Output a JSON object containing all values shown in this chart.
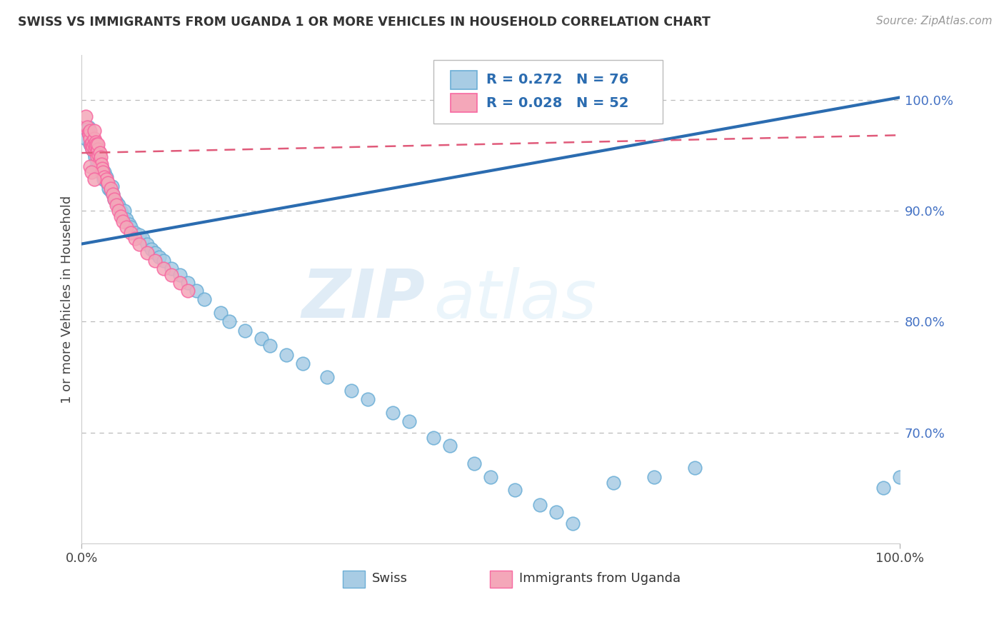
{
  "title": "SWISS VS IMMIGRANTS FROM UGANDA 1 OR MORE VEHICLES IN HOUSEHOLD CORRELATION CHART",
  "source": "Source: ZipAtlas.com",
  "ylabel": "1 or more Vehicles in Household",
  "legend_swiss": "Swiss",
  "legend_uganda": "Immigrants from Uganda",
  "R_swiss": 0.272,
  "N_swiss": 76,
  "R_uganda": 0.028,
  "N_uganda": 52,
  "swiss_color": "#a8cce4",
  "uganda_color": "#f4a7b9",
  "swiss_edge_color": "#6baed6",
  "uganda_edge_color": "#f768a1",
  "swiss_line_color": "#2b6cb0",
  "uganda_line_color": "#e05a7a",
  "background_color": "#ffffff",
  "watermark_zip": "ZIP",
  "watermark_atlas": "atlas",
  "swiss_x": [
    0.005,
    0.008,
    0.01,
    0.01,
    0.012,
    0.013,
    0.015,
    0.015,
    0.016,
    0.017,
    0.018,
    0.018,
    0.019,
    0.02,
    0.02,
    0.021,
    0.022,
    0.023,
    0.024,
    0.025,
    0.026,
    0.027,
    0.028,
    0.03,
    0.031,
    0.033,
    0.035,
    0.037,
    0.038,
    0.04,
    0.042,
    0.045,
    0.048,
    0.05,
    0.052,
    0.055,
    0.058,
    0.06,
    0.065,
    0.07,
    0.075,
    0.08,
    0.085,
    0.09,
    0.095,
    0.1,
    0.11,
    0.12,
    0.13,
    0.14,
    0.15,
    0.17,
    0.18,
    0.2,
    0.22,
    0.23,
    0.25,
    0.27,
    0.3,
    0.33,
    0.35,
    0.38,
    0.4,
    0.43,
    0.45,
    0.48,
    0.5,
    0.53,
    0.56,
    0.58,
    0.6,
    0.65,
    0.7,
    0.75,
    0.98,
    1.0
  ],
  "swiss_y": [
    0.965,
    0.975,
    0.96,
    0.968,
    0.958,
    0.955,
    0.952,
    0.96,
    0.948,
    0.955,
    0.958,
    0.94,
    0.945,
    0.948,
    0.955,
    0.94,
    0.938,
    0.942,
    0.935,
    0.938,
    0.932,
    0.928,
    0.935,
    0.93,
    0.925,
    0.92,
    0.918,
    0.922,
    0.915,
    0.91,
    0.908,
    0.905,
    0.9,
    0.895,
    0.9,
    0.892,
    0.888,
    0.885,
    0.88,
    0.878,
    0.875,
    0.87,
    0.865,
    0.862,
    0.858,
    0.855,
    0.848,
    0.842,
    0.835,
    0.828,
    0.82,
    0.808,
    0.8,
    0.792,
    0.785,
    0.778,
    0.77,
    0.762,
    0.75,
    0.738,
    0.73,
    0.718,
    0.71,
    0.695,
    0.688,
    0.672,
    0.66,
    0.648,
    0.635,
    0.628,
    0.618,
    0.655,
    0.66,
    0.668,
    0.65,
    0.66
  ],
  "uganda_x": [
    0.005,
    0.007,
    0.008,
    0.009,
    0.01,
    0.01,
    0.011,
    0.012,
    0.013,
    0.013,
    0.014,
    0.015,
    0.015,
    0.015,
    0.016,
    0.017,
    0.017,
    0.018,
    0.018,
    0.019,
    0.02,
    0.02,
    0.021,
    0.022,
    0.022,
    0.023,
    0.024,
    0.025,
    0.026,
    0.028,
    0.03,
    0.032,
    0.035,
    0.038,
    0.04,
    0.042,
    0.045,
    0.048,
    0.05,
    0.055,
    0.06,
    0.065,
    0.07,
    0.08,
    0.09,
    0.1,
    0.11,
    0.12,
    0.13,
    0.01,
    0.012,
    0.015
  ],
  "uganda_y": [
    0.985,
    0.975,
    0.97,
    0.968,
    0.965,
    0.972,
    0.96,
    0.958,
    0.962,
    0.955,
    0.958,
    0.965,
    0.972,
    0.96,
    0.955,
    0.962,
    0.958,
    0.952,
    0.96,
    0.948,
    0.955,
    0.96,
    0.95,
    0.945,
    0.952,
    0.948,
    0.942,
    0.938,
    0.935,
    0.93,
    0.928,
    0.925,
    0.92,
    0.915,
    0.91,
    0.905,
    0.9,
    0.895,
    0.89,
    0.885,
    0.88,
    0.875,
    0.87,
    0.862,
    0.855,
    0.848,
    0.842,
    0.835,
    0.828,
    0.94,
    0.935,
    0.928
  ],
  "trend_swiss_x0": 0.0,
  "trend_swiss_y0": 0.87,
  "trend_swiss_x1": 1.0,
  "trend_swiss_y1": 1.002,
  "trend_uganda_x0": 0.0,
  "trend_uganda_y0": 0.952,
  "trend_uganda_x1": 1.0,
  "trend_uganda_y1": 0.968,
  "xlim": [
    0.0,
    1.0
  ],
  "ylim": [
    0.6,
    1.04
  ],
  "yticks": [
    0.7,
    0.8,
    0.9,
    1.0
  ],
  "ytick_labels": [
    "70.0%",
    "80.0%",
    "90.0%",
    "100.0%"
  ]
}
